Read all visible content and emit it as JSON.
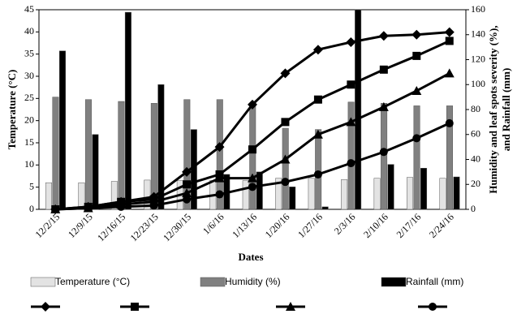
{
  "chart_data": {
    "type": "bar_line",
    "x_label": "Dates",
    "y_label": "Temperature (°C)",
    "y2_label": [
      "Humidity and leaf spots severity (%),",
      "and Rainfall (mm)"
    ],
    "categories": [
      "12/2/15",
      "12/9/15",
      "12/16/15",
      "12/23/15",
      "12/30/15",
      "1/6/16",
      "1/13/16",
      "1/20/16",
      "1/27/16",
      "2/3/16",
      "2/10/16",
      "2/17/16",
      "2/24/16"
    ],
    "ylim": [
      0,
      45
    ],
    "yticks": [
      0,
      5,
      10,
      15,
      20,
      25,
      30,
      35,
      40,
      45
    ],
    "y2lim": [
      0,
      160
    ],
    "y2ticks": [
      0,
      20,
      40,
      60,
      80,
      100,
      120,
      140,
      160
    ],
    "series": [
      {
        "name": "Temperature (°C)",
        "kind": "bar",
        "axis": "y",
        "color": "#e3e3e3",
        "values": [
          6,
          6,
          6.3,
          6.6,
          6.5,
          6.5,
          6.5,
          7,
          7,
          6.7,
          7,
          7.2,
          7
        ]
      },
      {
        "name": "Humidity (%)",
        "kind": "bar",
        "axis": "y2",
        "color": "#808080",
        "values": [
          90,
          88,
          86.5,
          85,
          88,
          88,
          85,
          65,
          64,
          86,
          85,
          83,
          83
        ]
      },
      {
        "name": "Rainfall (mm)",
        "kind": "bar",
        "axis": "y2",
        "color": "#000000",
        "values": [
          127,
          60,
          158,
          100,
          64,
          28,
          30,
          18,
          2,
          160,
          36,
          33,
          26
        ]
      },
      {
        "kind": "line",
        "axis": "y2",
        "marker": "diamond",
        "color": "#000000",
        "values": [
          0,
          2,
          6,
          10,
          30,
          50,
          84,
          109,
          128,
          134,
          139,
          140,
          142
        ]
      },
      {
        "kind": "line",
        "axis": "y2",
        "marker": "square",
        "color": "#000000",
        "values": [
          0,
          2,
          6,
          8,
          20,
          28,
          48,
          70,
          88,
          100,
          112,
          123,
          135
        ]
      },
      {
        "kind": "line",
        "axis": "y2",
        "marker": "triangle",
        "color": "#000000",
        "values": [
          0,
          1,
          4,
          6,
          13,
          25,
          25,
          40,
          60,
          70,
          82,
          95,
          109
        ]
      },
      {
        "kind": "line",
        "axis": "y2",
        "marker": "circle",
        "color": "#000000",
        "values": [
          0,
          1,
          2,
          3,
          8,
          12,
          18,
          22,
          28,
          37,
          46,
          57,
          69
        ]
      }
    ]
  }
}
